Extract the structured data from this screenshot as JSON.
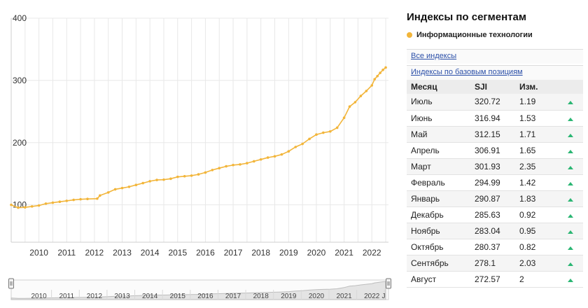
{
  "chart_data": {
    "type": "line",
    "y_ticks": [
      "400",
      "300",
      "200",
      "100"
    ],
    "ylim": [
      40,
      400
    ],
    "x_ticks": [
      "2010",
      "2011",
      "2012",
      "2013",
      "2014",
      "2015",
      "2016",
      "2017",
      "2018",
      "2019",
      "2020",
      "2021",
      "2022"
    ],
    "xlim": [
      2009.0,
      2022.6
    ],
    "grid": true,
    "series": [
      {
        "color": "#f2b53a",
        "points": [
          [
            2009.0,
            100
          ],
          [
            2009.25,
            95.5
          ],
          [
            2009.5,
            96
          ],
          [
            2009.75,
            97.5
          ],
          [
            2010.0,
            99
          ],
          [
            2010.25,
            102
          ],
          [
            2010.5,
            103.5
          ],
          [
            2010.75,
            105
          ],
          [
            2011.0,
            106.5
          ],
          [
            2011.25,
            108
          ],
          [
            2011.5,
            109
          ],
          [
            2011.75,
            109.5
          ],
          [
            2012.1,
            110
          ],
          [
            2012.2,
            115
          ],
          [
            2012.5,
            120
          ],
          [
            2012.75,
            125
          ],
          [
            2013.0,
            127
          ],
          [
            2013.25,
            129
          ],
          [
            2013.5,
            132
          ],
          [
            2013.75,
            135
          ],
          [
            2014.0,
            138
          ],
          [
            2014.25,
            140
          ],
          [
            2014.5,
            140.5
          ],
          [
            2014.75,
            142
          ],
          [
            2015.0,
            145
          ],
          [
            2015.25,
            146
          ],
          [
            2015.5,
            147
          ],
          [
            2015.75,
            149
          ],
          [
            2016.0,
            152
          ],
          [
            2016.25,
            156
          ],
          [
            2016.5,
            159
          ],
          [
            2016.75,
            162
          ],
          [
            2017.0,
            164
          ],
          [
            2017.25,
            165
          ],
          [
            2017.5,
            167
          ],
          [
            2017.75,
            170
          ],
          [
            2018.0,
            173
          ],
          [
            2018.25,
            176
          ],
          [
            2018.5,
            178
          ],
          [
            2018.75,
            181
          ],
          [
            2019.0,
            186
          ],
          [
            2019.25,
            193
          ],
          [
            2019.5,
            198
          ],
          [
            2019.75,
            206
          ],
          [
            2020.0,
            213
          ],
          [
            2020.25,
            216
          ],
          [
            2020.5,
            218
          ],
          [
            2020.75,
            224
          ],
          [
            2021.0,
            240
          ],
          [
            2021.2,
            258
          ],
          [
            2021.4,
            265
          ],
          [
            2021.6,
            275
          ],
          [
            2021.8,
            283
          ],
          [
            2022.0,
            292
          ],
          [
            2022.1,
            301.93
          ],
          [
            2022.2,
            306.91
          ],
          [
            2022.3,
            312.15
          ],
          [
            2022.4,
            316.94
          ],
          [
            2022.5,
            320.72
          ]
        ]
      }
    ]
  },
  "navigator": {
    "labels": [
      "2010",
      "2011",
      "2012",
      "2013",
      "2014",
      "2015",
      "2016",
      "2017",
      "2018",
      "2019",
      "2020",
      "2021",
      "2022",
      "J"
    ]
  },
  "panel": {
    "title": "Индексы по сегментам",
    "legend": "Информационные технологии",
    "link_all": "Все индексы",
    "link_base": "Индексы по базовым позициям",
    "columns": [
      "Месяц",
      "SJI",
      "Изм."
    ],
    "rows": [
      {
        "month": "Июль",
        "sji": "320.72",
        "chg": "1.19"
      },
      {
        "month": "Июнь",
        "sji": "316.94",
        "chg": "1.53"
      },
      {
        "month": "Май",
        "sji": "312.15",
        "chg": "1.71"
      },
      {
        "month": "Апрель",
        "sji": "306.91",
        "chg": "1.65"
      },
      {
        "month": "Март",
        "sji": "301.93",
        "chg": "2.35"
      },
      {
        "month": "Февраль",
        "sji": "294.99",
        "chg": "1.42"
      },
      {
        "month": "Январь",
        "sji": "290.87",
        "chg": "1.83"
      },
      {
        "month": "Декабрь",
        "sji": "285.63",
        "chg": "0.92"
      },
      {
        "month": "Ноябрь",
        "sji": "283.04",
        "chg": "0.95"
      },
      {
        "month": "Октябрь",
        "sji": "280.37",
        "chg": "0.82"
      },
      {
        "month": "Сентябрь",
        "sji": "278.1",
        "chg": "2.03"
      },
      {
        "month": "Август",
        "sji": "272.57",
        "chg": "2"
      }
    ]
  }
}
